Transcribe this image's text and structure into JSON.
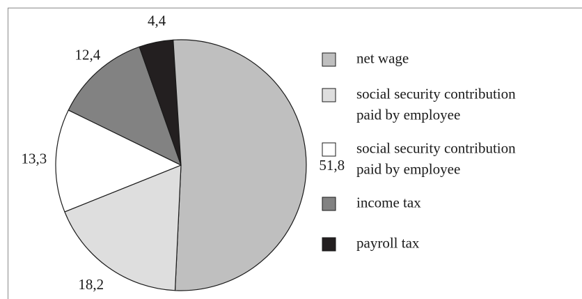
{
  "chart_data": {
    "type": "pie",
    "title": "",
    "series": [
      {
        "name": "net wage",
        "value": 51.8,
        "label": "51,8",
        "color": "#bfbfbf"
      },
      {
        "name": "social security contribution paid by employee",
        "value": 18.2,
        "label": "18,2",
        "color": "#dedede"
      },
      {
        "name": "social security contribution paid by employee",
        "value": 13.3,
        "label": "13,3",
        "color": "#ffffff"
      },
      {
        "name": "income tax",
        "value": 12.4,
        "label": "12,4",
        "color": "#828282"
      },
      {
        "name": "payroll tax",
        "value": 4.4,
        "label": "4,4",
        "color": "#231f20"
      }
    ],
    "legend": {
      "placement": "right",
      "entries": [
        {
          "lines": [
            "net wage"
          ],
          "color": "#bfbfbf"
        },
        {
          "lines": [
            "social security contribution",
            "paid by employee"
          ],
          "color": "#dedede"
        },
        {
          "lines": [
            "social security contribution",
            "paid by employee"
          ],
          "color": "#ffffff"
        },
        {
          "lines": [
            "income tax"
          ],
          "color": "#828282"
        },
        {
          "lines": [
            "payroll tax"
          ],
          "color": "#231f20"
        }
      ]
    },
    "slice_order": [
      "income tax",
      "payroll tax",
      "net wage",
      "social security contribution paid by employee",
      "social security contribution paid by employee"
    ],
    "outline_color": "#1a1a1a"
  }
}
